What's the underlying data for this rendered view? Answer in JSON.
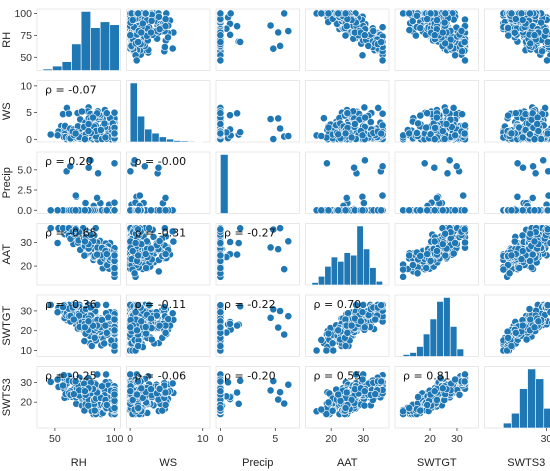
{
  "chart_data": {
    "type": "scatter",
    "variables": [
      "RH",
      "WS",
      "Precip",
      "AAT",
      "SWTGT",
      "SWTS3"
    ],
    "marker_color": "#1f77b4",
    "marker_edge": "#ffffff",
    "background": "#ffffff",
    "grid": false,
    "axis_ranges": {
      "RH": [
        35,
        105
      ],
      "WS": [
        -0.5,
        11
      ],
      "Precip": [
        -0.4,
        7.2
      ],
      "AAT": [
        12,
        38
      ],
      "SWTGT": [
        7,
        38
      ],
      "SWTS3": [
        7,
        38
      ]
    },
    "x_ticks": {
      "RH": [
        "50",
        "100"
      ],
      "WS": [
        "0",
        "10"
      ],
      "Precip": [
        "0",
        "5"
      ],
      "AAT": [
        "20",
        "30"
      ],
      "SWTGT": [
        "20",
        "30"
      ],
      "SWTS3": [
        "30"
      ]
    },
    "y_ticks": {
      "RH": [
        "100",
        "75",
        "50"
      ],
      "WS": [
        "0",
        "5",
        "10"
      ],
      "Precip": [
        "0.0",
        "2.5",
        "5.0"
      ],
      "AAT": [
        "20",
        "30"
      ],
      "SWTGT": [
        "10",
        "20",
        "30"
      ],
      "SWTS3": [
        "20",
        "30"
      ]
    },
    "correlations": [
      {
        "row": "WS",
        "col": "RH",
        "text": "ρ = -0.07"
      },
      {
        "row": "Precip",
        "col": "RH",
        "text": "ρ = 0.20"
      },
      {
        "row": "Precip",
        "col": "WS",
        "text": "ρ = -0.00"
      },
      {
        "row": "AAT",
        "col": "RH",
        "text": "ρ = -0.65"
      },
      {
        "row": "AAT",
        "col": "WS",
        "text": "ρ = -0.31"
      },
      {
        "row": "AAT",
        "col": "Precip",
        "text": "ρ = -0.27"
      },
      {
        "row": "SWTGT",
        "col": "RH",
        "text": "ρ = -0.36"
      },
      {
        "row": "SWTGT",
        "col": "WS",
        "text": "ρ = -0.11"
      },
      {
        "row": "SWTGT",
        "col": "Precip",
        "text": "ρ = -0.22"
      },
      {
        "row": "SWTGT",
        "col": "AAT",
        "text": "ρ = 0.70"
      },
      {
        "row": "SWTS3",
        "col": "RH",
        "text": "ρ = -0.25"
      },
      {
        "row": "SWTS3",
        "col": "WS",
        "text": "ρ = -0.06"
      },
      {
        "row": "SWTS3",
        "col": "Precip",
        "text": "ρ = -0.20"
      },
      {
        "row": "SWTS3",
        "col": "AAT",
        "text": "ρ = 0.55"
      },
      {
        "row": "SWTS3",
        "col": "SWTGT",
        "text": "ρ = 0.81"
      }
    ],
    "histograms": {
      "RH": {
        "bin_edges": [
          40,
          48,
          56,
          64,
          72,
          80,
          88,
          96,
          104
        ],
        "counts": [
          2,
          6,
          12,
          36,
          80,
          58,
          66,
          62
        ]
      },
      "WS": {
        "bin_edges": [
          0,
          1,
          2,
          3,
          4,
          5,
          6,
          7,
          8,
          9,
          10
        ],
        "counts": [
          160,
          70,
          35,
          24,
          14,
          8,
          4,
          3,
          2,
          1
        ]
      },
      "Precip": {
        "bin_edges": [
          0,
          0.7,
          1.4,
          2.1,
          2.8,
          3.5,
          4.2,
          4.9,
          5.6,
          6.3,
          7.0
        ],
        "counts": [
          320,
          0,
          0,
          0,
          0,
          0,
          0,
          0,
          0,
          0
        ]
      },
      "AAT": {
        "bin_edges": [
          14,
          16,
          18,
          20,
          22,
          24,
          26,
          28,
          30,
          32,
          34,
          36
        ],
        "counts": [
          4,
          14,
          30,
          45,
          38,
          52,
          48,
          95,
          58,
          28,
          6
        ]
      },
      "SWTGT": {
        "bin_edges": [
          10,
          12.5,
          15,
          17.5,
          20,
          22.5,
          25,
          27.5,
          30,
          32.5
        ],
        "counts": [
          4,
          8,
          20,
          45,
          75,
          110,
          118,
          60,
          15
        ]
      },
      "SWTS3": {
        "bin_edges": [
          14,
          17,
          20,
          23,
          26,
          29,
          32,
          35
        ],
        "counts": [
          10,
          30,
          80,
          120,
          100,
          40,
          12
        ]
      }
    }
  }
}
